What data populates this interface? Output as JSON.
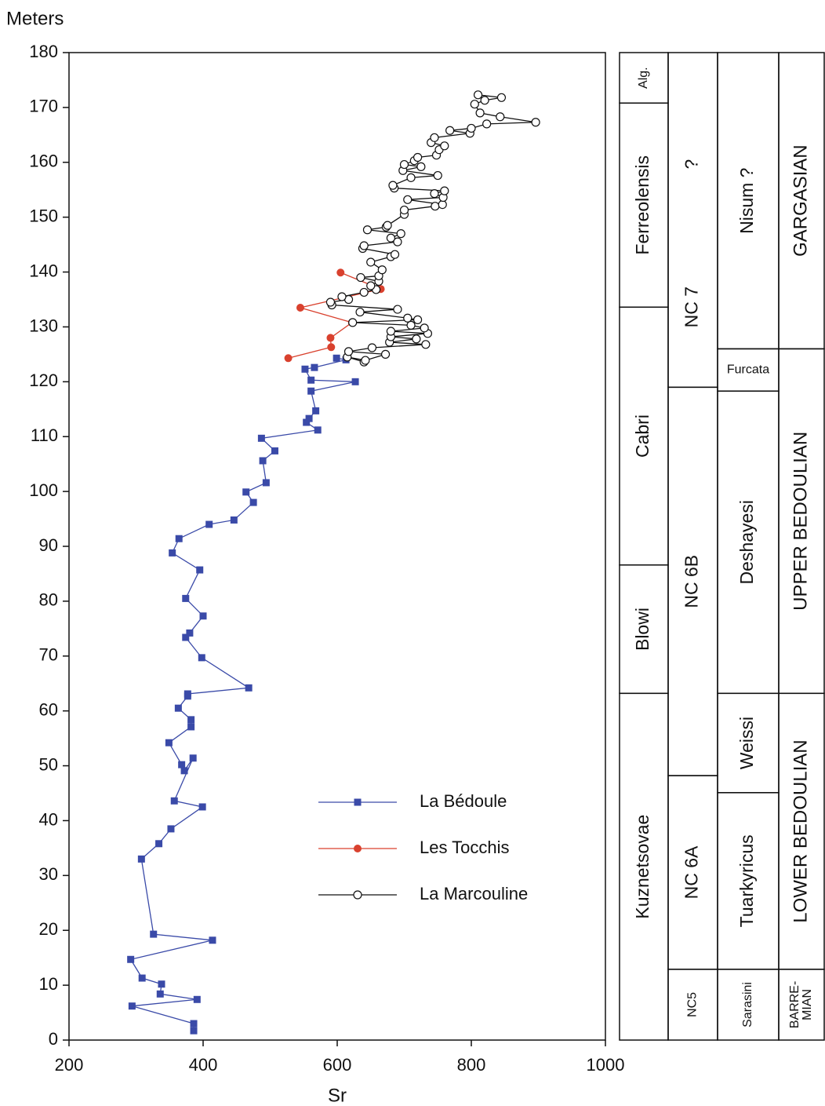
{
  "chart_data": {
    "type": "line",
    "ylabel": "Meters",
    "xlabel": "Sr",
    "xlim": [
      200,
      1000
    ],
    "xticks": [
      200,
      400,
      600,
      800,
      1000
    ],
    "ylim": [
      0,
      180
    ],
    "yticks": [
      0,
      10,
      20,
      30,
      40,
      50,
      60,
      70,
      80,
      90,
      100,
      110,
      120,
      130,
      140,
      150,
      160,
      170,
      180
    ],
    "series": [
      {
        "name": "La Bédoule",
        "color": "#3a4aa8",
        "marker": "square",
        "x": [
          386,
          386,
          294,
          391,
          336,
          338,
          309,
          292,
          414,
          326,
          308,
          334,
          352,
          399,
          357,
          385,
          372,
          368,
          349,
          382,
          382,
          363,
          377,
          377,
          468,
          398,
          374,
          380,
          400,
          374,
          395,
          354,
          364,
          409,
          446,
          475,
          464,
          494,
          489,
          507,
          487,
          571,
          554,
          558,
          568,
          561,
          627,
          561,
          552,
          566,
          613,
          599
        ],
        "values": [
          1.7,
          3.0,
          6.2,
          7.4,
          8.4,
          10.2,
          11.3,
          14.7,
          18.2,
          19.3,
          33.0,
          35.8,
          38.5,
          42.5,
          43.6,
          51.4,
          49.1,
          50.2,
          54.2,
          57.1,
          58.4,
          60.5,
          62.7,
          63.1,
          64.2,
          69.7,
          73.4,
          74.2,
          77.3,
          80.5,
          85.7,
          88.8,
          91.4,
          94.0,
          94.8,
          98.0,
          99.9,
          101.6,
          105.6,
          107.4,
          109.7,
          111.2,
          112.6,
          113.3,
          114.7,
          118.3,
          120.0,
          120.3,
          122.3,
          122.6,
          124.0,
          124.3
        ]
      },
      {
        "name": "Les Tocchis",
        "color": "#d9412e",
        "marker": "circle",
        "x": [
          527,
          591,
          590,
          622,
          545,
          665,
          605
        ],
        "values": [
          124.3,
          126.3,
          128.0,
          130.8,
          133.5,
          136.9,
          139.9
        ]
      },
      {
        "name": "La Marcouline",
        "color": "#111111",
        "marker": "open-circle",
        "x": [
          640,
          615,
          642,
          672,
          617,
          652,
          732,
          678,
          718,
          680,
          735,
          680,
          730,
          710,
          623,
          720,
          705,
          634,
          690,
          592,
          590,
          617,
          607,
          640,
          658,
          650,
          662,
          635,
          662,
          667,
          650,
          680,
          686,
          638,
          640,
          690,
          680,
          695,
          645,
          673,
          675,
          700,
          700,
          746,
          757,
          705,
          758,
          745,
          760,
          685,
          683,
          710,
          750,
          698,
          725,
          700,
          715,
          720,
          748,
          752,
          760,
          740,
          745,
          798,
          768,
          800,
          823,
          896,
          843,
          813,
          805,
          820,
          845,
          810
        ],
        "values": [
          123.6,
          124.5,
          123.9,
          125.0,
          125.5,
          126.2,
          126.8,
          127.2,
          127.8,
          128.2,
          128.8,
          129.2,
          129.8,
          130.3,
          130.8,
          131.3,
          131.6,
          132.7,
          133.2,
          134.0,
          134.5,
          135.0,
          135.5,
          136.3,
          136.8,
          137.5,
          138.3,
          139.0,
          139.3,
          140.4,
          141.8,
          142.8,
          143.2,
          144.3,
          144.8,
          145.5,
          146.2,
          147.0,
          147.7,
          148.2,
          148.5,
          150.5,
          151.3,
          152.0,
          152.3,
          153.2,
          153.6,
          154.3,
          154.8,
          155.3,
          155.8,
          157.2,
          157.6,
          158.5,
          159.2,
          159.6,
          160.3,
          160.9,
          161.3,
          162.3,
          163.0,
          163.6,
          164.5,
          165.3,
          165.8,
          166.2,
          167.0,
          167.3,
          168.3,
          169.0,
          170.6,
          171.3,
          171.8,
          172.3
        ]
      }
    ]
  },
  "strat_columns": [
    [
      {
        "label": "Kuznetsovae",
        "from": 0,
        "to": 63.2
      },
      {
        "label": "Blowi",
        "from": 63.2,
        "to": 86.6
      },
      {
        "label": "Cabri",
        "from": 86.6,
        "to": 133.6
      },
      {
        "label": "Ferreolensis",
        "from": 133.6,
        "to": 170.8
      },
      {
        "label": "Alg.",
        "from": 170.8,
        "to": 180
      }
    ],
    [
      {
        "label": "NC5",
        "from": 0,
        "to": 12.9
      },
      {
        "label": "NC 6A",
        "from": 12.9,
        "to": 48.2
      },
      {
        "label": "NC 6B",
        "from": 48.2,
        "to": 119
      },
      {
        "label": [
          "NC 7",
          "?"
        ],
        "from": 119,
        "to": 180
      }
    ],
    [
      {
        "label": "Sarasini",
        "from": 0,
        "to": 12.9
      },
      {
        "label": "Tuarkyricus",
        "from": 12.9,
        "to": 45.1
      },
      {
        "label": "Weissi",
        "from": 45.1,
        "to": 63.2
      },
      {
        "label": "Deshayesi",
        "from": 63.2,
        "to": 118.3
      },
      {
        "label": "Furcata",
        "from": 118.3,
        "to": 126
      },
      {
        "label": "Nisum ?",
        "from": 126,
        "to": 180
      }
    ],
    [
      {
        "label": [
          "BARRE-",
          "MIAN"
        ],
        "from": 0,
        "to": 12.9
      },
      {
        "label": "LOWER BEDOULIAN",
        "from": 12.9,
        "to": 63.2
      },
      {
        "label": "UPPER BEDOULIAN",
        "from": 63.2,
        "to": 126
      },
      {
        "label": "GARGASIAN",
        "from": 126,
        "to": 180
      }
    ]
  ]
}
